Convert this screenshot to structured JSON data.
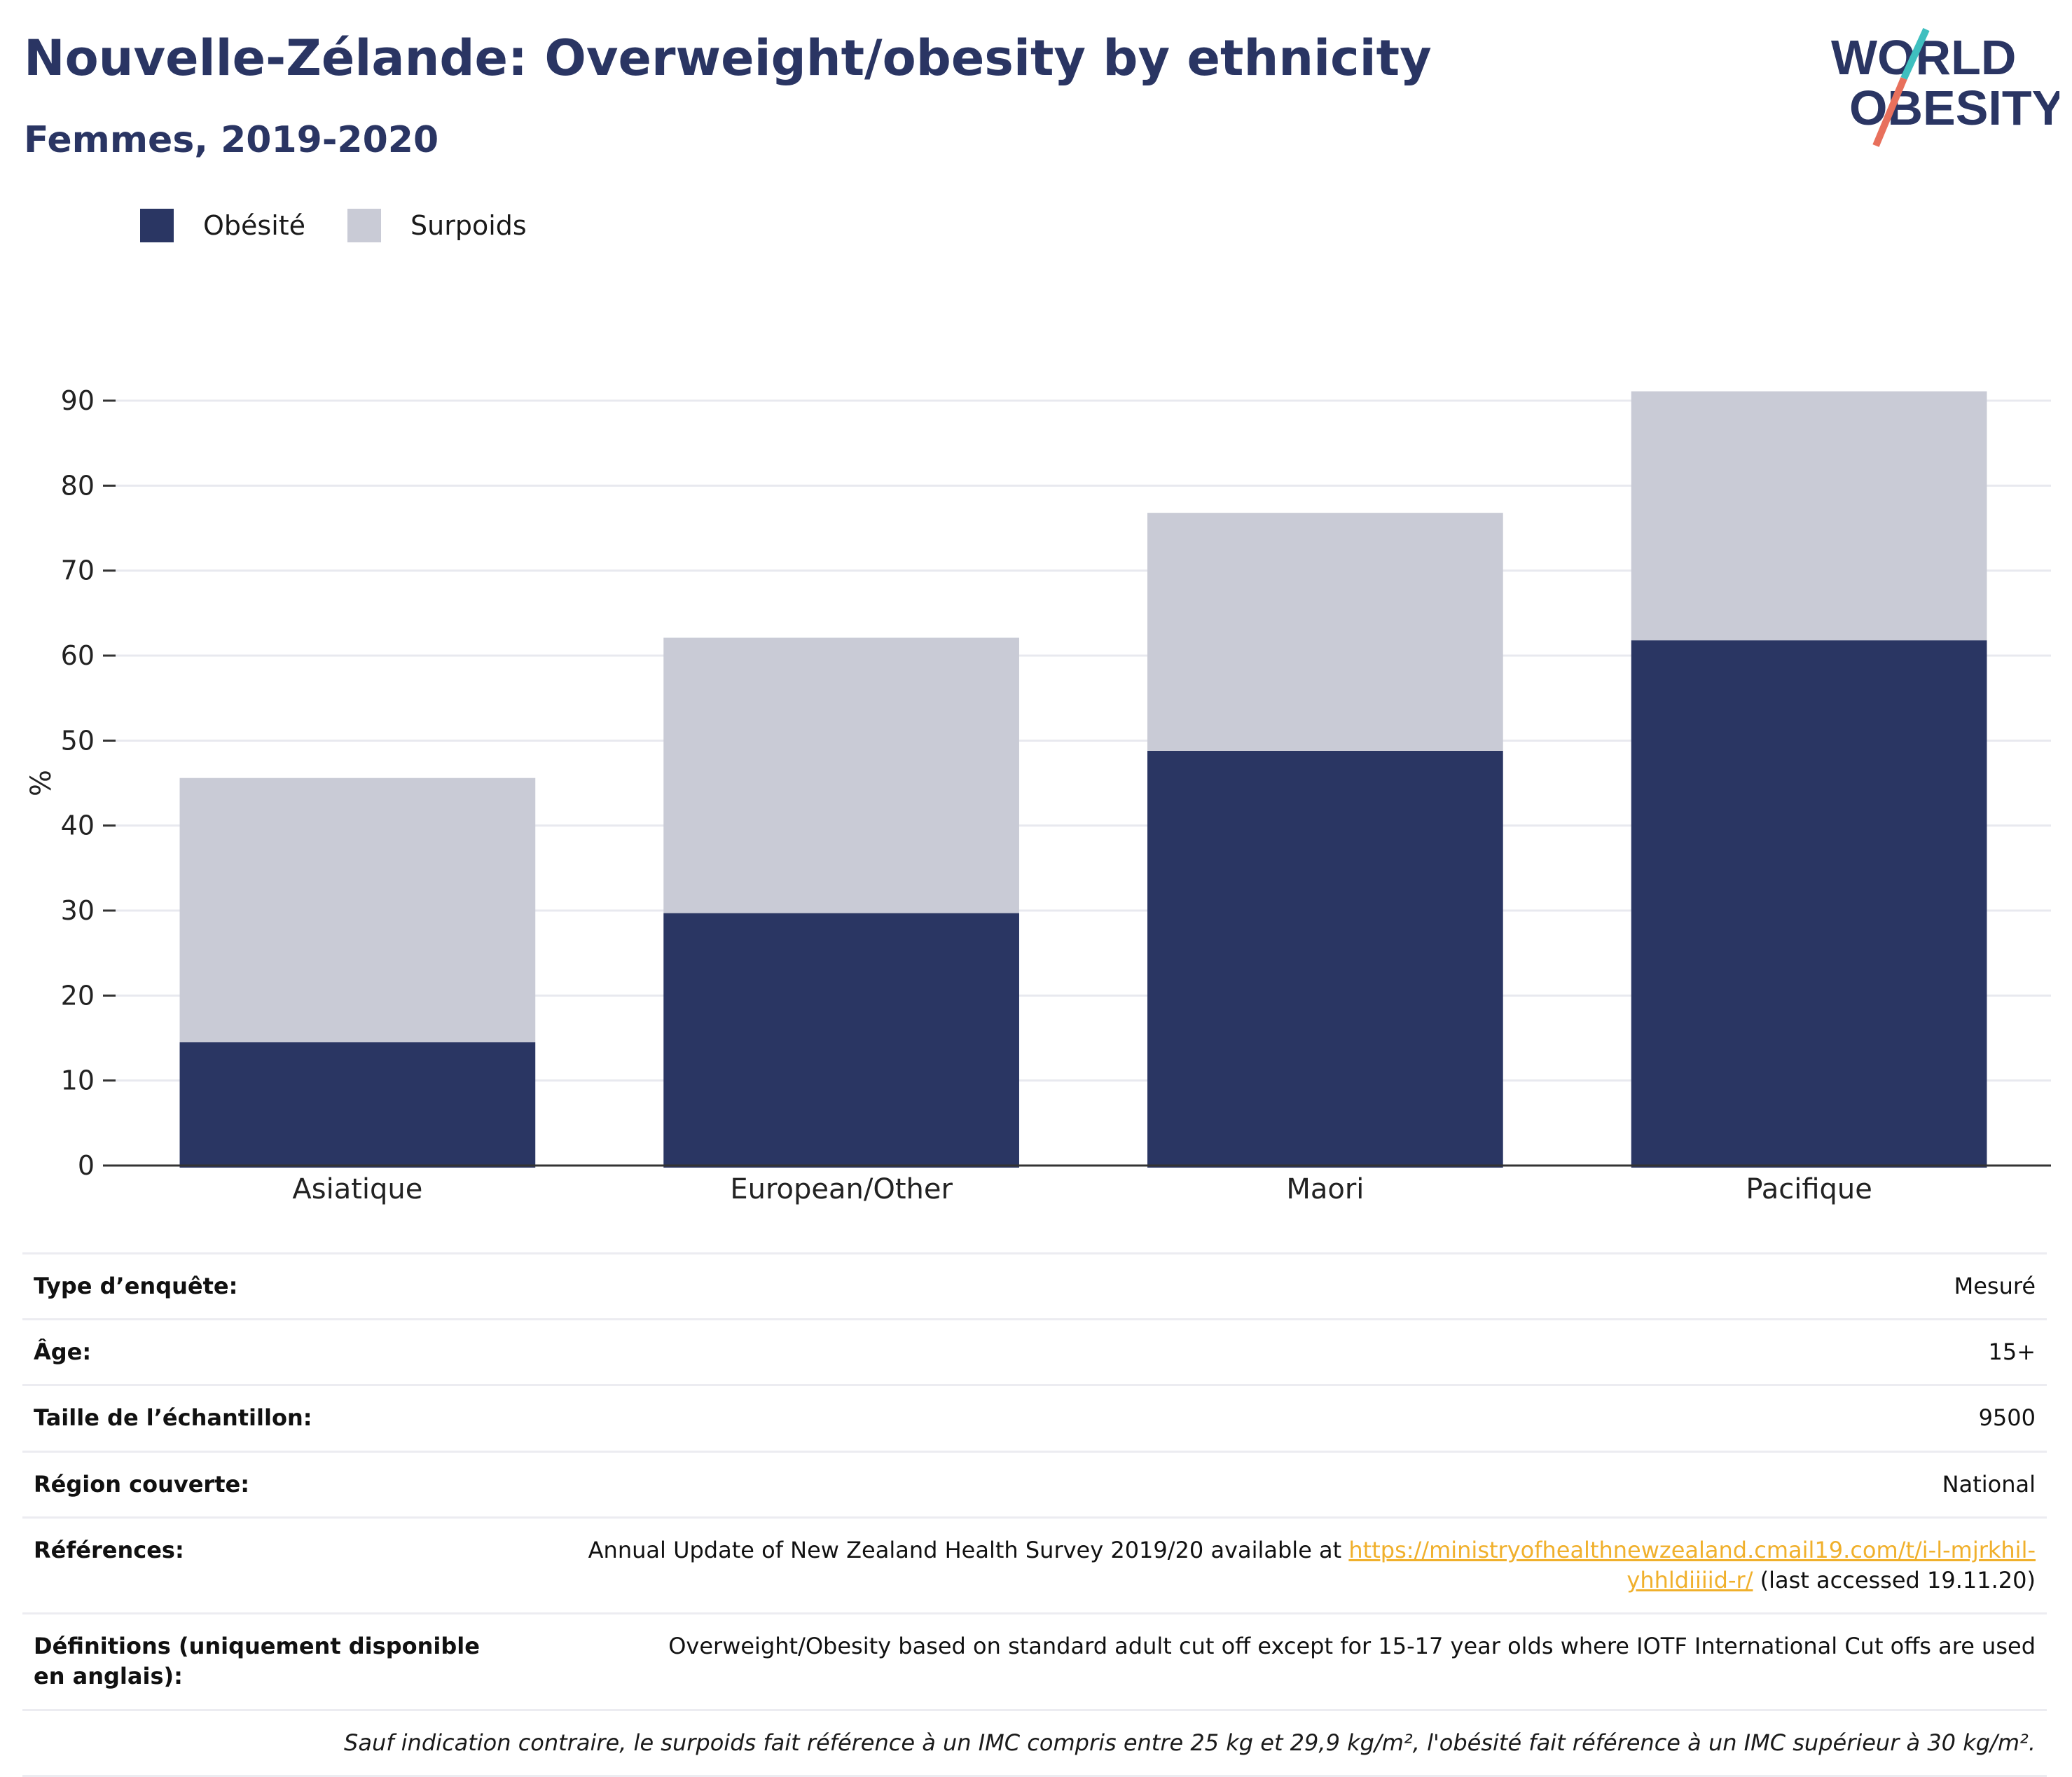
{
  "header": {
    "title": "Nouvelle-Zélande: Overweight/obesity by ethnicity",
    "subtitle": "Femmes, 2019-2020"
  },
  "logo": {
    "line1": "WORLD",
    "line2": "OBESITY"
  },
  "legend": [
    {
      "label": "Obésité",
      "color": "#2a3663"
    },
    {
      "label": "Surpoids",
      "color": "#c9cbd6"
    }
  ],
  "chart_data": {
    "type": "bar",
    "stacked": true,
    "categories": [
      "Asiatique",
      "European/Other",
      "Maori",
      "Pacifique"
    ],
    "series": [
      {
        "name": "Obésité",
        "values": [
          14.5,
          29.7,
          48.8,
          61.8
        ],
        "color": "#2a3663"
      },
      {
        "name": "Surpoids",
        "values": [
          31.1,
          32.4,
          28.0,
          29.3
        ],
        "color": "#c9cbd6"
      }
    ],
    "ylabel": "%",
    "ylim": [
      0,
      90
    ],
    "yticks": [
      "0",
      "10",
      "20",
      "30",
      "40",
      "50",
      "60",
      "70",
      "80",
      "90"
    ],
    "grid": true,
    "legend_position": "top-left"
  },
  "info": {
    "survey_type": {
      "label": "Type d’enquête:",
      "value": "Mesuré"
    },
    "age": {
      "label": "Âge:",
      "value": "15+"
    },
    "sample_size": {
      "label": "Taille de l’échantillon:",
      "value": "9500"
    },
    "region": {
      "label": "Région couverte:",
      "value": "National"
    },
    "references": {
      "label": "Références:",
      "text_before": "Annual Update of New Zealand Health Survey 2019/20 available at ",
      "link": "https://ministryofhealthnewzealand.cmail19.com/t/i-l-mjrkhil-yhhldiiiid-r/",
      "text_after": " (last accessed 19.11.20)"
    },
    "definitions": {
      "label": "Définitions (uniquement disponible en anglais):",
      "value": "Overweight/Obesity based on standard adult cut off except for 15-17 year olds where IOTF International Cut offs are used"
    },
    "note": "Sauf indication contraire, le surpoids fait référence à un IMC compris entre 25 kg et 29,9 kg/m², l'obésité fait référence à un IMC supérieur à 30 kg/m²."
  }
}
